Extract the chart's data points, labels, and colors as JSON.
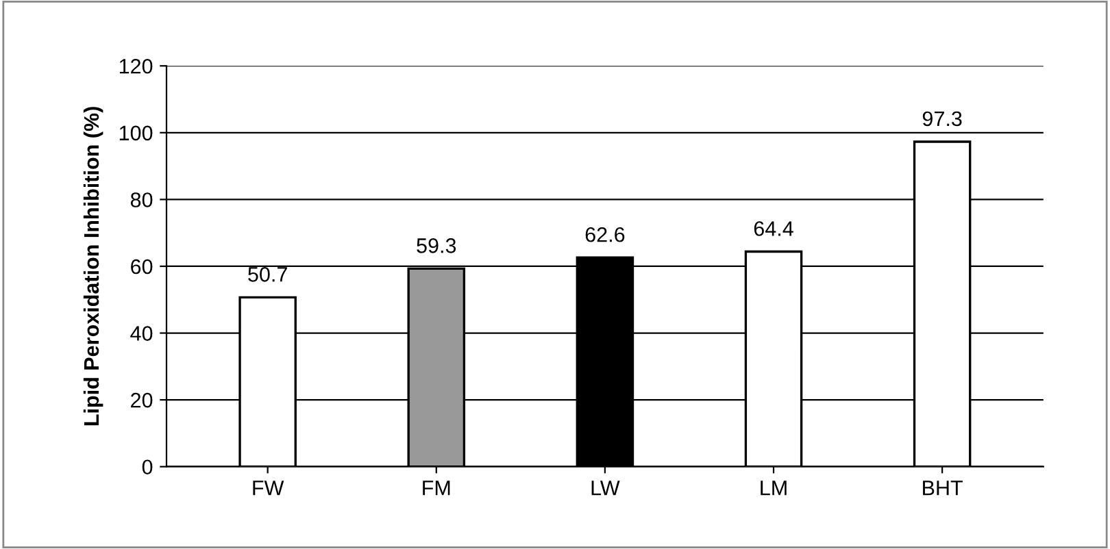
{
  "chart_data": {
    "type": "bar",
    "ylabel": "Lipid Peroxidation Inhibition (%)",
    "categories": [
      "FW",
      "FM",
      "LW",
      "LM",
      "BHT"
    ],
    "values": [
      50.7,
      59.3,
      62.6,
      64.4,
      97.3
    ],
    "colors": [
      "#ffffff",
      "#999999",
      "#000000",
      "#ffffff",
      "#ffffff"
    ],
    "ylim": [
      0,
      120
    ],
    "yticks": [
      0,
      20,
      40,
      60,
      80,
      100,
      120
    ],
    "grid": "y",
    "data_labels": true
  }
}
